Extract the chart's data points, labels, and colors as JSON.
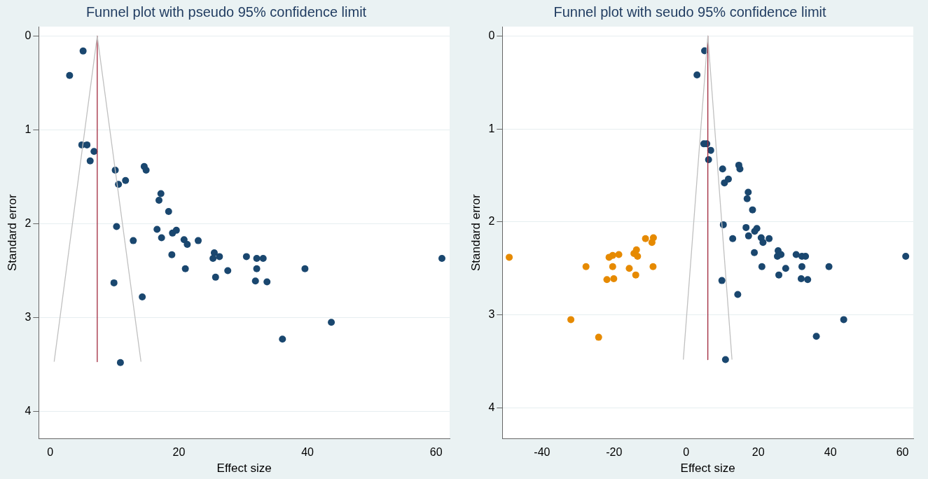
{
  "chart_data": [
    {
      "type": "scatter",
      "title": "Funnel plot with pseudo 95% confidence limit",
      "xlabel": "Effect size",
      "ylabel": "Standard error",
      "xlim": [
        -1.8,
        62.1
      ],
      "ylim": [
        4.29,
        -0.1
      ],
      "xticks": [
        0,
        20,
        40,
        60
      ],
      "yticks": [
        0,
        1,
        2,
        3,
        4
      ],
      "grid": "y",
      "series": [
        {
          "type": "line",
          "marker": "none",
          "color": "#c0c0c0",
          "x": [
            0.6,
            7.3,
            14.1
          ],
          "values": [
            3.47,
            0,
            3.47
          ]
        },
        {
          "type": "line",
          "marker": "none",
          "color": "#a0283c",
          "x": [
            7.3,
            7.3
          ],
          "values": [
            0,
            3.47
          ]
        },
        {
          "marker": "circle",
          "color": "#1a476f",
          "x": [
            5.1,
            3.0,
            4.9,
            5.7,
            6.8,
            6.2,
            10.1,
            10.6,
            11.7,
            14.6,
            14.9,
            17.2,
            16.9,
            18.4,
            10.3,
            16.6,
            17.3,
            19.0,
            19.6,
            20.8,
            21.3,
            23.0,
            12.9,
            18.9,
            25.5,
            25.3,
            26.3,
            21.0,
            25.7,
            27.6,
            30.5,
            32.1,
            33.1,
            32.1,
            31.9,
            33.7,
            9.9,
            14.3,
            36.1,
            10.9,
            39.6,
            43.7,
            60.9
          ],
          "values": [
            0.16,
            0.42,
            1.16,
            1.16,
            1.23,
            1.33,
            1.43,
            1.58,
            1.54,
            1.39,
            1.43,
            1.68,
            1.75,
            1.87,
            2.03,
            2.06,
            2.15,
            2.1,
            2.07,
            2.17,
            2.22,
            2.18,
            2.18,
            2.33,
            2.31,
            2.37,
            2.35,
            2.48,
            2.57,
            2.5,
            2.35,
            2.37,
            2.37,
            2.48,
            2.61,
            2.62,
            2.63,
            2.78,
            3.23,
            3.48,
            2.48,
            3.05,
            2.37
          ]
        }
      ]
    },
    {
      "type": "scatter",
      "title": "Funnel plot with seudo 95% confidence limit",
      "xlabel": "Effect size",
      "ylabel": "Standard error",
      "xlim": [
        -51,
        63
      ],
      "ylim": [
        4.33,
        -0.1
      ],
      "xticks": [
        -40,
        -20,
        0,
        20,
        40,
        60
      ],
      "yticks": [
        0,
        1,
        2,
        3,
        4
      ],
      "grid": "y",
      "series": [
        {
          "type": "line",
          "marker": "none",
          "color": "#c0c0c0",
          "x": [
            -0.8,
            6.0,
            12.7
          ],
          "values": [
            3.48,
            0,
            3.48
          ]
        },
        {
          "type": "line",
          "marker": "none",
          "color": "#a0283c",
          "x": [
            6.0,
            6.0
          ],
          "values": [
            0,
            3.48
          ]
        },
        {
          "marker": "circle",
          "color": "#e68a00",
          "x": [
            -49.1,
            -27.8,
            -32.0,
            -24.3,
            -21.4,
            -20.4,
            -18.7,
            -20.4,
            -22.0,
            -20.1,
            -15.8,
            -14.0,
            -14.5,
            -13.8,
            -13.5,
            -11.3,
            -9.5,
            -9.1,
            -9.2
          ],
          "values": [
            2.38,
            2.48,
            3.05,
            3.24,
            2.38,
            2.36,
            2.35,
            2.48,
            2.62,
            2.61,
            2.5,
            2.57,
            2.34,
            2.3,
            2.37,
            2.18,
            2.22,
            2.17,
            2.48
          ]
        },
        {
          "marker": "circle",
          "color": "#1a476f",
          "x": [
            5.1,
            3.0,
            4.9,
            5.7,
            6.8,
            6.2,
            10.1,
            10.6,
            11.7,
            14.6,
            14.9,
            17.2,
            16.9,
            18.4,
            10.3,
            16.6,
            17.3,
            19.0,
            19.6,
            20.8,
            21.3,
            23.0,
            12.9,
            18.9,
            25.5,
            25.3,
            26.3,
            21.0,
            25.7,
            27.6,
            30.5,
            32.1,
            33.1,
            32.1,
            31.9,
            33.7,
            9.9,
            14.3,
            36.1,
            10.9,
            39.6,
            43.7,
            60.9
          ],
          "values": [
            0.16,
            0.42,
            1.16,
            1.16,
            1.23,
            1.33,
            1.43,
            1.58,
            1.54,
            1.39,
            1.43,
            1.68,
            1.75,
            1.87,
            2.03,
            2.06,
            2.15,
            2.1,
            2.07,
            2.17,
            2.22,
            2.18,
            2.18,
            2.33,
            2.31,
            2.37,
            2.35,
            2.48,
            2.57,
            2.5,
            2.35,
            2.37,
            2.37,
            2.48,
            2.61,
            2.62,
            2.63,
            2.78,
            3.23,
            3.48,
            2.48,
            3.05,
            2.37
          ]
        }
      ]
    }
  ]
}
